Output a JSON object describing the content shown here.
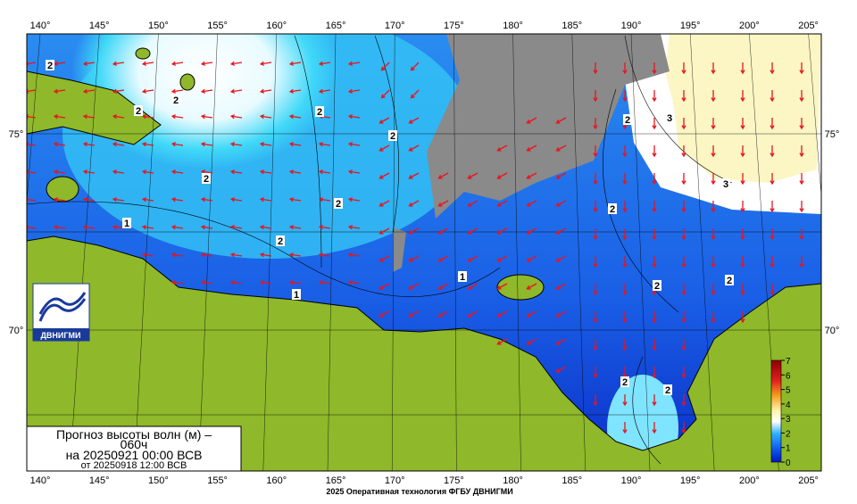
{
  "map": {
    "longitude_labels": [
      "140°",
      "145°",
      "150°",
      "155°",
      "160°",
      "165°",
      "170°",
      "175°",
      "180°",
      "185°",
      "190°",
      "195°",
      "200°",
      "205°"
    ],
    "latitude_labels": [
      "75°",
      "70°"
    ],
    "contour_labels": [
      "2",
      "2",
      "2",
      "2",
      "2",
      "2",
      "2",
      "2",
      "1",
      "1",
      "1",
      "3",
      "3",
      "2",
      "2",
      "2",
      "2",
      "2",
      "2"
    ],
    "colorbar": {
      "ticks": [
        0,
        1,
        2,
        3,
        4,
        5,
        6,
        7
      ]
    },
    "legend": {
      "title": "Прогноз высоты волн (м) –",
      "lead": "060ч",
      "valid": "на 20250921 00:00 ВСВ",
      "issued": "от 20250918 12:00 ВСВ"
    },
    "logo": "ДВНИГМИ",
    "footer": "2025 Оперативная технология ФГБУ ДВНИГМИ"
  }
}
